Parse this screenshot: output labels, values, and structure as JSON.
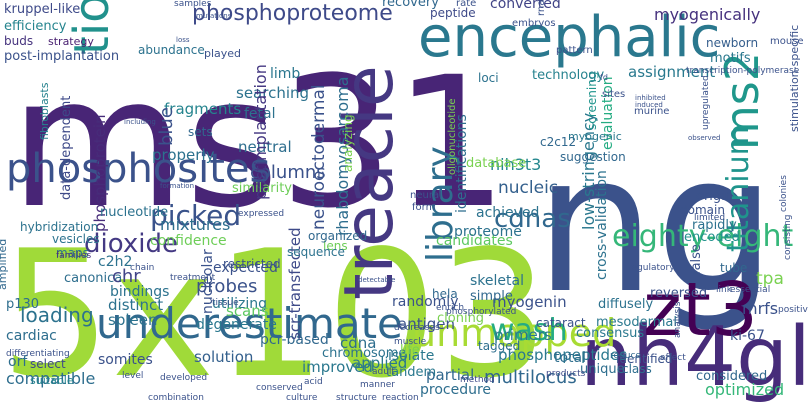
{
  "word_cloud": {
    "palette_note": "viridis",
    "words": [
      {
        "text": "ms31",
        "color": "#482576"
      },
      {
        "text": "ng",
        "color": "#3b528b"
      },
      {
        "text": "5x103",
        "color": "#a0da39"
      },
      {
        "text": "treacle",
        "color": "#453882"
      },
      {
        "text": "encephalic",
        "color": "#2a788e"
      },
      {
        "text": "nh4glu",
        "color": "#472c7a"
      },
      {
        "text": "phosphosites",
        "color": "#3b528b"
      },
      {
        "text": "zt3",
        "color": "#440154"
      },
      {
        "text": "underestimate",
        "color": "#31688e"
      },
      {
        "text": "unmapped",
        "color": "#a8db34"
      },
      {
        "text": "tio2",
        "color": "#21918c"
      },
      {
        "text": "ms2",
        "color": "#1f978b"
      },
      {
        "text": "library",
        "color": "#2e6e8e"
      },
      {
        "text": "titanium",
        "color": "#1f948c"
      },
      {
        "text": "phosphoproteome",
        "color": "#3e4a89"
      },
      {
        "text": "eighty-eight",
        "color": "#35b779"
      },
      {
        "text": "picked",
        "color": "#3a538b"
      },
      {
        "text": "dioxide",
        "color": "#443983"
      },
      {
        "text": "wash",
        "color": "#25ac82"
      },
      {
        "text": "cdnas",
        "color": "#31688e"
      },
      {
        "text": "myogenically",
        "color": "#46327e"
      },
      {
        "text": "kruppel-like",
        "color": "#3e4a89"
      },
      {
        "text": "efficiency",
        "color": "#25848e"
      },
      {
        "text": "buds",
        "color": "#46337e"
      },
      {
        "text": "strategy",
        "color": "#481f70"
      },
      {
        "text": "post-implantation",
        "color": "#3b528b"
      },
      {
        "text": "abundance",
        "color": "#2c728e"
      },
      {
        "text": "played",
        "color": "#3b528b"
      },
      {
        "text": "limb",
        "color": "#2a768e"
      },
      {
        "text": "searching",
        "color": "#2c728e"
      },
      {
        "text": "fetal",
        "color": "#2c728e"
      },
      {
        "text": "fragments",
        "color": "#25848e"
      },
      {
        "text": "sets",
        "color": "#31688e"
      },
      {
        "text": "neutral",
        "color": "#2e6e8e"
      },
      {
        "text": "columns",
        "color": "#3b528b"
      },
      {
        "text": "postimplantation",
        "color": "#453882"
      },
      {
        "text": "phosphoprotein",
        "color": "#472c7a"
      },
      {
        "text": "data-dependent",
        "color": "#3e4a89"
      },
      {
        "text": "fibroblasts",
        "color": "#26828e"
      },
      {
        "text": "properly",
        "color": "#2c728e"
      },
      {
        "text": "similarity",
        "color": "#6ece58"
      },
      {
        "text": "neuroectodermal",
        "color": "#3b528b"
      },
      {
        "text": "rhabdomyosarcoma",
        "color": "#2e6e8e"
      },
      {
        "text": "nucleic",
        "color": "#34608d"
      },
      {
        "text": "nih3t3",
        "color": "#24878e"
      },
      {
        "text": "myogenin",
        "color": "#3b528b"
      },
      {
        "text": "low-stringency",
        "color": "#2a788e"
      },
      {
        "text": "cross-validation",
        "color": "#2c728e"
      },
      {
        "text": "screening",
        "color": "#1f948c"
      },
      {
        "text": "evaluation",
        "color": "#25ac82"
      },
      {
        "text": "assignment",
        "color": "#29798e"
      },
      {
        "text": "newborn",
        "color": "#355e8d"
      },
      {
        "text": "motifs",
        "color": "#2a788e"
      },
      {
        "text": "technology",
        "color": "#26828e"
      },
      {
        "text": "recovery",
        "color": "#31688e"
      },
      {
        "text": "peptide",
        "color": "#3e4a89"
      },
      {
        "text": "converted",
        "color": "#414487"
      },
      {
        "text": "prfers",
        "color": "#3b528b"
      },
      {
        "text": "mrfs",
        "color": "#3b528b"
      },
      {
        "text": "tpa",
        "color": "#7ad151"
      },
      {
        "text": "ki-67",
        "color": "#3b528b"
      },
      {
        "text": "optimized",
        "color": "#35b779"
      },
      {
        "text": "considered",
        "color": "#31688e"
      },
      {
        "text": "multilocus",
        "color": "#31688e"
      },
      {
        "text": "partial",
        "color": "#31688e"
      },
      {
        "text": "procedure",
        "color": "#2e6e8e"
      },
      {
        "text": "cdna",
        "color": "#2e6e8e"
      },
      {
        "text": "applied",
        "color": "#2a788e"
      },
      {
        "text": "improved",
        "color": "#2a788e"
      },
      {
        "text": "chromosome",
        "color": "#2c728e"
      },
      {
        "text": "pcr-based",
        "color": "#31688e"
      },
      {
        "text": "solution",
        "color": "#34608d"
      },
      {
        "text": "somites",
        "color": "#3b528b"
      },
      {
        "text": "compatible",
        "color": "#2e6e8e"
      },
      {
        "text": "orf",
        "color": "#2e6e8e"
      },
      {
        "text": "select",
        "color": "#3e4a89"
      },
      {
        "text": "suitable",
        "color": "#25848e"
      },
      {
        "text": "cardiac",
        "color": "#2e6e8e"
      },
      {
        "text": "p130",
        "color": "#2e6e8e"
      },
      {
        "text": "loading",
        "color": "#2c728e"
      },
      {
        "text": "spleen",
        "color": "#2c728e"
      },
      {
        "text": "distinct",
        "color": "#2c728e"
      },
      {
        "text": "bindings",
        "color": "#2c728e"
      },
      {
        "text": "canonical",
        "color": "#2e6e8e"
      },
      {
        "text": "c2h2",
        "color": "#2c728e"
      },
      {
        "text": "chr",
        "color": "#414487"
      },
      {
        "text": "vesicles",
        "color": "#2c728e"
      },
      {
        "text": "maps",
        "color": "#2c728e"
      },
      {
        "text": "hybridization",
        "color": "#2c728e"
      },
      {
        "text": "nucleotide",
        "color": "#2c728e"
      },
      {
        "text": "amplified",
        "color": "#31688e"
      },
      {
        "text": "families",
        "color": "#46327e"
      },
      {
        "text": "blue",
        "color": "#3b528b"
      },
      {
        "text": "mixtures",
        "color": "#2e6e8e"
      },
      {
        "text": "confidence",
        "color": "#6ece58"
      },
      {
        "text": "restricted",
        "color": "#3b528b"
      },
      {
        "text": "probes",
        "color": "#3b528b"
      },
      {
        "text": "utilizing",
        "color": "#2a788e"
      },
      {
        "text": "degenerate",
        "color": "#2a788e"
      },
      {
        "text": "scans",
        "color": "#5ec962"
      },
      {
        "text": "nucleolar",
        "color": "#3b528b"
      },
      {
        "text": "expected",
        "color": "#3b528b"
      },
      {
        "text": "scr-transfected",
        "color": "#3e4a89"
      },
      {
        "text": "lens",
        "color": "#6ece58"
      },
      {
        "text": "sequence",
        "color": "#2c728e"
      },
      {
        "text": "organized",
        "color": "#31688e"
      },
      {
        "text": "diffusely",
        "color": "#2c728e"
      },
      {
        "text": "domain",
        "color": "#3b528b"
      },
      {
        "text": "origin",
        "color": "#3b528b"
      },
      {
        "text": "rapidly",
        "color": "#2c728e"
      },
      {
        "text": "encoded",
        "color": "#21918c"
      },
      {
        "text": "false",
        "color": "#3b528b"
      },
      {
        "text": "reversed",
        "color": "#3b528b"
      },
      {
        "text": "consensus",
        "color": "#2a788e"
      },
      {
        "text": "mesodermal",
        "color": "#2a788e"
      },
      {
        "text": "cataract",
        "color": "#3b528b"
      },
      {
        "text": "primers",
        "color": "#2a788e"
      },
      {
        "text": "phosphopeptides",
        "color": "#2a788e"
      },
      {
        "text": "tagged",
        "color": "#2e6e8e"
      },
      {
        "text": "total",
        "color": "#2e6e8e"
      },
      {
        "text": "unique",
        "color": "#2e6e8e"
      },
      {
        "text": "class",
        "color": "#2e6e8e"
      },
      {
        "text": "tube",
        "color": "#31688e"
      },
      {
        "text": "identified",
        "color": "#3b528b"
      },
      {
        "text": "antigen",
        "color": "#3b528b"
      },
      {
        "text": "randomly",
        "color": "#3b528b"
      },
      {
        "text": "isolate",
        "color": "#2a788e"
      },
      {
        "text": "tandem",
        "color": "#2a788e"
      },
      {
        "text": "life",
        "color": "#7ad151"
      },
      {
        "text": "cloning",
        "color": "#7ad151"
      },
      {
        "text": "simple",
        "color": "#31688e"
      },
      {
        "text": "hela",
        "color": "#31688e"
      },
      {
        "text": "skeletal",
        "color": "#2c728e"
      },
      {
        "text": "candidates",
        "color": "#5ec962"
      },
      {
        "text": "proteome",
        "color": "#2c728e"
      },
      {
        "text": "achieved",
        "color": "#2c728e"
      },
      {
        "text": "identifications",
        "color": "#2e6e8e"
      },
      {
        "text": "database",
        "color": "#7ad151"
      },
      {
        "text": "suggestion",
        "color": "#31688e"
      },
      {
        "text": "loci",
        "color": "#2c728e"
      },
      {
        "text": "c2c12",
        "color": "#31688e"
      },
      {
        "text": "oligonucleotide",
        "color": "#7ad151"
      },
      {
        "text": "analyzing",
        "color": "#7ad151"
      },
      {
        "text": "myogenic",
        "color": "#2a788e"
      },
      {
        "text": "reduce",
        "color": "#31688e"
      },
      {
        "text": "method",
        "color": "#3e4a89"
      },
      {
        "text": "products",
        "color": "#3e4a89"
      },
      {
        "text": "structure",
        "color": "#3b528b"
      },
      {
        "text": "culture",
        "color": "#3b528b"
      },
      {
        "text": "manner",
        "color": "#3b528b"
      },
      {
        "text": "adult",
        "color": "#3b528b"
      },
      {
        "text": "muscle",
        "color": "#3b528b"
      },
      {
        "text": "decreases",
        "color": "#3b528b"
      },
      {
        "text": "enrich",
        "color": "#3b528b"
      },
      {
        "text": "phosphorylated",
        "color": "#3b528b"
      },
      {
        "text": "expressed",
        "color": "#3b528b"
      },
      {
        "text": "treatment",
        "color": "#3b528b"
      },
      {
        "text": "chain",
        "color": "#3b528b"
      },
      {
        "text": "differentiating",
        "color": "#3b528b"
      },
      {
        "text": "tissue",
        "color": "#3b528b"
      },
      {
        "text": "conserved",
        "color": "#3b528b"
      },
      {
        "text": "combination",
        "color": "#3b528b"
      },
      {
        "text": "developed",
        "color": "#3b528b"
      },
      {
        "text": "level",
        "color": "#3b528b"
      },
      {
        "text": "acid",
        "color": "#3b528b"
      },
      {
        "text": "reaction",
        "color": "#3b528b"
      },
      {
        "text": "affect",
        "color": "#3b528b"
      },
      {
        "text": "analysis",
        "color": "#3b528b"
      },
      {
        "text": "link",
        "color": "#3b528b"
      },
      {
        "text": "essential",
        "color": "#3b528b"
      },
      {
        "text": "positive",
        "color": "#3b528b"
      },
      {
        "text": "colonies",
        "color": "#3b528b"
      },
      {
        "text": "consisting",
        "color": "#3b528b"
      },
      {
        "text": "stimulation-specific",
        "color": "#3b528b"
      },
      {
        "text": "regulatory",
        "color": "#3b528b"
      },
      {
        "text": "upregulated",
        "color": "#3b528b"
      },
      {
        "text": "limited",
        "color": "#3b528b"
      },
      {
        "text": "murine",
        "color": "#3b528b"
      },
      {
        "text": "sites",
        "color": "#3b528b"
      },
      {
        "text": "pattern",
        "color": "#3b528b"
      },
      {
        "text": "transcription-polymerase",
        "color": "#3b528b"
      },
      {
        "text": "mouse",
        "color": "#3b528b"
      },
      {
        "text": "inhibited",
        "color": "#3b528b"
      },
      {
        "text": "induced",
        "color": "#3b528b"
      },
      {
        "text": "observed",
        "color": "#3b528b"
      },
      {
        "text": "detectable",
        "color": "#3b528b"
      },
      {
        "text": "neural",
        "color": "#3b528b"
      },
      {
        "text": "form",
        "color": "#3b528b"
      },
      {
        "text": "formation",
        "color": "#3b528b"
      },
      {
        "text": "including",
        "color": "#3b528b"
      },
      {
        "text": "samples",
        "color": "#3b528b"
      },
      {
        "text": "mutations",
        "color": "#3b528b"
      },
      {
        "text": "loss",
        "color": "#3b528b"
      },
      {
        "text": "rate",
        "color": "#3b528b"
      },
      {
        "text": "embryos",
        "color": "#3b528b"
      },
      {
        "text": "rna",
        "color": "#3b528b"
      },
      {
        "text": "fd",
        "color": "#3b528b"
      }
    ]
  }
}
